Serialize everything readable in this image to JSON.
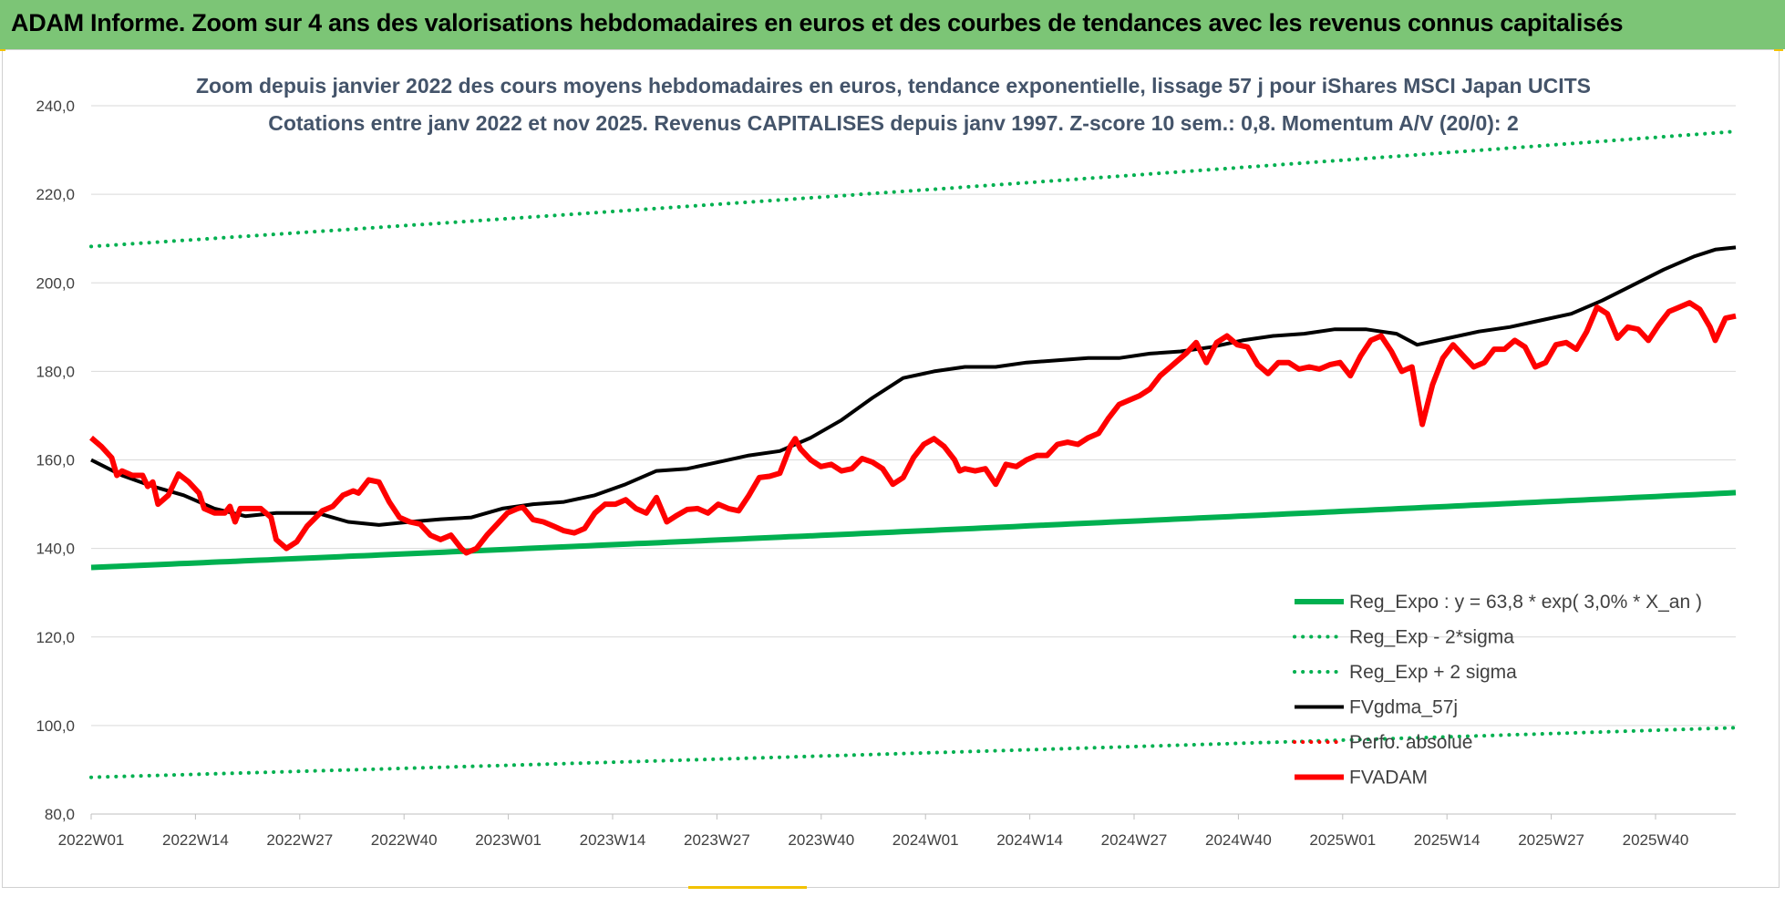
{
  "banner_title": "ADAM Informe. Zoom sur 4 ans des valorisations hebdomadaires en euros et des courbes de tendances avec les revenus connus capitalisés",
  "chart_data": {
    "type": "line",
    "title": [
      "Zoom depuis janvier 2022 des cours moyens hebdomadaires en euros, tendance exponentielle, lissage 57 j pour iShares MSCI Japan UCITS",
      "Cotations entre janv 2022 et nov 2025. Revenus CAPITALISES depuis janv 1997. Z-score 10 sem.: 0,8. Momentum A/V (20/0): 2"
    ],
    "xlabel": "",
    "ylabel": "",
    "ylim": [
      80,
      240
    ],
    "y_ticks": [
      "240,0",
      "220,0",
      "200,0",
      "180,0",
      "160,0",
      "140,0",
      "120,0",
      "100,0",
      "80,0"
    ],
    "x_tick_labels": [
      "2022W01",
      "2022W14",
      "2022W27",
      "2022W40",
      "2023W01",
      "2023W14",
      "2023W27",
      "2023W40",
      "2024W01",
      "2024W14",
      "2024W27",
      "2024W40",
      "2025W01",
      "2025W14",
      "2025W27",
      "2025W40"
    ],
    "x_tick_week_index": [
      0,
      13,
      26,
      39,
      52,
      65,
      78,
      91,
      104,
      117,
      130,
      143,
      156,
      169,
      182,
      195
    ],
    "n_weeks": 206,
    "grid": "horizontal",
    "legend_position": "bottom-right",
    "colors": {
      "reg_expo": "#00b050",
      "sigma_bands": "#00b050",
      "fvgdma": "#000000",
      "fvadam": "#ff0000",
      "perfo": "#ff0000"
    },
    "series": [
      {
        "name": "Reg_Expo : y = 63,8 * exp( 3,0% *  X_an )",
        "style": "solid-thick",
        "start": 135.7,
        "end": 152.6
      },
      {
        "name": "Reg_Exp - 2*sigma",
        "style": "dotted",
        "start": 88.3,
        "end": 99.5
      },
      {
        "name": "Reg_Exp + 2 sigma",
        "style": "dotted",
        "start": 208.2,
        "end": 234.2
      },
      {
        "name": "FVgdma_57j",
        "style": "solid",
        "points": [
          [
            0,
            160.0
          ],
          [
            6,
            156.5
          ],
          [
            12,
            154.0
          ],
          [
            18,
            152.0
          ],
          [
            24,
            149.0
          ],
          [
            30,
            147.3
          ],
          [
            36,
            148.0
          ],
          [
            44,
            148.0
          ],
          [
            50,
            146.0
          ],
          [
            56,
            145.3
          ],
          [
            62,
            146.0
          ],
          [
            68,
            146.6
          ],
          [
            74,
            147.0
          ],
          [
            80,
            149.0
          ],
          [
            86,
            150.0
          ],
          [
            92,
            150.5
          ],
          [
            98,
            152.0
          ],
          [
            104,
            154.5
          ],
          [
            110,
            157.5
          ],
          [
            116,
            158.0
          ],
          [
            122,
            159.5
          ],
          [
            128,
            161.0
          ],
          [
            134,
            162.0
          ],
          [
            140,
            165.0
          ],
          [
            146,
            169.0
          ],
          [
            152,
            174.0
          ],
          [
            158,
            178.5
          ],
          [
            164,
            180.0
          ],
          [
            170,
            181.0
          ],
          [
            176,
            181.0
          ],
          [
            182,
            182.0
          ],
          [
            188,
            182.5
          ],
          [
            194,
            183.0
          ],
          [
            200,
            183.0
          ],
          [
            206,
            184.0
          ],
          [
            212,
            184.5
          ],
          [
            218,
            185.5
          ],
          [
            224,
            187.0
          ],
          [
            230,
            188.0
          ],
          [
            236,
            188.5
          ],
          [
            242,
            189.5
          ],
          [
            248,
            189.5
          ],
          [
            254,
            188.5
          ],
          [
            258,
            186.0
          ],
          [
            264,
            187.5
          ],
          [
            270,
            189.0
          ],
          [
            276,
            190.0
          ],
          [
            282,
            191.5
          ],
          [
            288,
            193.0
          ],
          [
            294,
            196.0
          ],
          [
            300,
            199.5
          ],
          [
            306,
            203.0
          ],
          [
            312,
            206.0
          ],
          [
            316,
            207.5
          ],
          [
            320,
            208.0
          ]
        ]
      },
      {
        "name": "Perfo. absolue",
        "style": "dotted",
        "points": []
      },
      {
        "name": "FVADAM",
        "style": "solid-thick",
        "points": [
          [
            0,
            165.0
          ],
          [
            2,
            163.0
          ],
          [
            4,
            160.5
          ],
          [
            5,
            156.5
          ],
          [
            6,
            157.5
          ],
          [
            8,
            156.5
          ],
          [
            10,
            156.5
          ],
          [
            11,
            154.0
          ],
          [
            12,
            155.0
          ],
          [
            13,
            150.0
          ],
          [
            15,
            152.0
          ],
          [
            17,
            156.8
          ],
          [
            19,
            155.0
          ],
          [
            21,
            152.5
          ],
          [
            22,
            149.0
          ],
          [
            24,
            148.0
          ],
          [
            26,
            148.0
          ],
          [
            27,
            149.5
          ],
          [
            28,
            146.0
          ],
          [
            29,
            149.0
          ],
          [
            31,
            149.0
          ],
          [
            33,
            149.0
          ],
          [
            35,
            147.0
          ],
          [
            36,
            142.0
          ],
          [
            38,
            140.0
          ],
          [
            40,
            141.5
          ],
          [
            42,
            145.0
          ],
          [
            45,
            148.5
          ],
          [
            47,
            149.5
          ],
          [
            49,
            152.0
          ],
          [
            51,
            153.0
          ],
          [
            52,
            152.5
          ],
          [
            54,
            155.5
          ],
          [
            56,
            155.0
          ],
          [
            58,
            150.5
          ],
          [
            60,
            147.0
          ],
          [
            62,
            146.0
          ],
          [
            64,
            145.5
          ],
          [
            66,
            143.0
          ],
          [
            68,
            142.0
          ],
          [
            70,
            143.0
          ],
          [
            72,
            140.0
          ],
          [
            73,
            139.0
          ],
          [
            75,
            140.0
          ],
          [
            77,
            143.0
          ],
          [
            79,
            145.5
          ],
          [
            81,
            148.0
          ],
          [
            83,
            149.0
          ],
          [
            84,
            149.3
          ],
          [
            86,
            146.5
          ],
          [
            88,
            146.0
          ],
          [
            90,
            145.0
          ],
          [
            92,
            144.0
          ],
          [
            94,
            143.5
          ],
          [
            96,
            144.5
          ],
          [
            98,
            148.0
          ],
          [
            100,
            150.0
          ],
          [
            102,
            150.0
          ],
          [
            104,
            151.0
          ],
          [
            106,
            149.0
          ],
          [
            108,
            148.0
          ],
          [
            110,
            151.5
          ],
          [
            112,
            146.0
          ],
          [
            114,
            147.5
          ],
          [
            116,
            148.8
          ],
          [
            118,
            149.0
          ],
          [
            120,
            148.0
          ],
          [
            122,
            150.0
          ],
          [
            124,
            149.0
          ],
          [
            126,
            148.5
          ],
          [
            128,
            152.0
          ],
          [
            130,
            156.0
          ],
          [
            132,
            156.3
          ],
          [
            134,
            157.0
          ],
          [
            135,
            160.0
          ],
          [
            136,
            163.0
          ],
          [
            137,
            164.8
          ],
          [
            138,
            162.5
          ],
          [
            140,
            160.0
          ],
          [
            142,
            158.5
          ],
          [
            144,
            159.0
          ],
          [
            146,
            157.5
          ],
          [
            148,
            158.0
          ],
          [
            150,
            160.3
          ],
          [
            152,
            159.5
          ],
          [
            154,
            158.0
          ],
          [
            156,
            154.5
          ],
          [
            158,
            156.0
          ],
          [
            160,
            160.5
          ],
          [
            162,
            163.5
          ],
          [
            164,
            164.8
          ],
          [
            166,
            163.0
          ],
          [
            168,
            160.0
          ],
          [
            169,
            157.5
          ],
          [
            170,
            158.0
          ],
          [
            172,
            157.5
          ],
          [
            174,
            158.0
          ],
          [
            176,
            154.5
          ],
          [
            178,
            159.0
          ],
          [
            180,
            158.5
          ],
          [
            182,
            160.0
          ],
          [
            184,
            161.0
          ],
          [
            186,
            161.0
          ],
          [
            188,
            163.5
          ],
          [
            190,
            164.0
          ],
          [
            192,
            163.5
          ],
          [
            194,
            165.0
          ],
          [
            196,
            166.0
          ],
          [
            198,
            169.5
          ],
          [
            200,
            172.5
          ],
          [
            202,
            173.5
          ],
          [
            204,
            174.5
          ],
          [
            206,
            176.0
          ],
          [
            208,
            179.0
          ],
          [
            210,
            181.0
          ],
          [
            212,
            183.0
          ],
          [
            213,
            184.0
          ],
          [
            215,
            186.5
          ],
          [
            217,
            182.0
          ],
          [
            219,
            186.5
          ],
          [
            221,
            188.0
          ],
          [
            223,
            186.0
          ],
          [
            225,
            185.5
          ],
          [
            227,
            181.5
          ],
          [
            229,
            179.5
          ],
          [
            231,
            182.0
          ],
          [
            233,
            182.0
          ],
          [
            235,
            180.5
          ],
          [
            237,
            181.0
          ],
          [
            239,
            180.5
          ],
          [
            241,
            181.5
          ],
          [
            243,
            182.0
          ],
          [
            245,
            179.0
          ],
          [
            247,
            183.5
          ],
          [
            249,
            187.0
          ],
          [
            251,
            188.0
          ],
          [
            253,
            184.5
          ],
          [
            255,
            180.0
          ],
          [
            257,
            181.0
          ],
          [
            259,
            168.0
          ],
          [
            261,
            177.0
          ],
          [
            263,
            183.0
          ],
          [
            265,
            186.0
          ],
          [
            267,
            183.5
          ],
          [
            269,
            181.0
          ],
          [
            271,
            182.0
          ],
          [
            273,
            185.0
          ],
          [
            275,
            185.0
          ],
          [
            277,
            187.0
          ],
          [
            279,
            185.5
          ],
          [
            281,
            181.0
          ],
          [
            283,
            182.0
          ],
          [
            285,
            186.0
          ],
          [
            287,
            186.5
          ],
          [
            289,
            185.0
          ],
          [
            291,
            189.0
          ],
          [
            293,
            194.5
          ],
          [
            295,
            193.0
          ],
          [
            297,
            187.5
          ],
          [
            299,
            190.0
          ],
          [
            301,
            189.5
          ],
          [
            303,
            187.0
          ],
          [
            305,
            190.5
          ],
          [
            307,
            193.5
          ],
          [
            309,
            194.5
          ],
          [
            311,
            195.5
          ],
          [
            313,
            194.0
          ],
          [
            315,
            190.0
          ],
          [
            316,
            187.0
          ],
          [
            318,
            192.0
          ],
          [
            320,
            192.5
          ]
        ]
      }
    ]
  }
}
